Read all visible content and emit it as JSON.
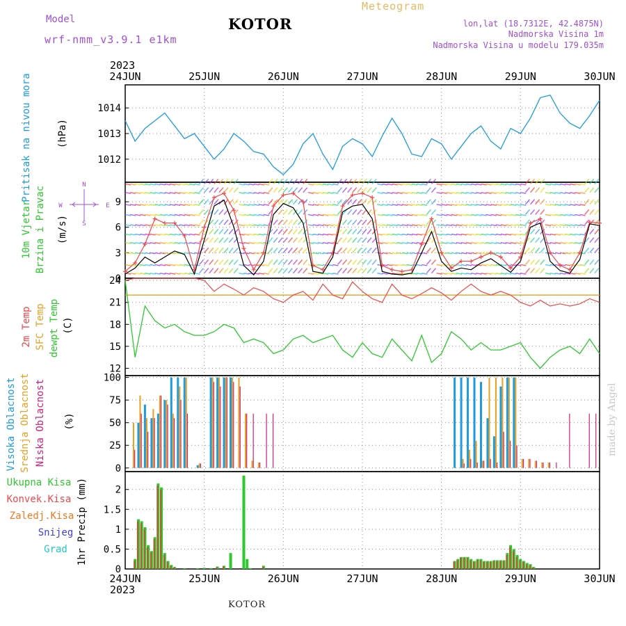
{
  "header": {
    "model_label": "Model",
    "model_name": "wrf-nmm_v3.9.1  e1km",
    "station": "KOTOR",
    "meteogram": "Meteogram",
    "lonlat": "lon,lat (18.7312E, 42.4875N)",
    "altitude": "Nadmorska Visina 1m",
    "model_altitude": "Nadmorska Visina u modelu 179.035m",
    "bottom_station": "KOTOR",
    "watermark": "made by Angel"
  },
  "colors": {
    "pressure": "#1e9be0",
    "temp": "#f04848",
    "sfc_temp": "#e8a020",
    "dewpt": "#2ec82e",
    "wind_speed": "#000000",
    "wind_gust": "#f04848",
    "high_cloud": "#1e9be0",
    "mid_cloud": "#e8a020",
    "low_cloud": "#d0207a",
    "total_precip": "#2ec82e",
    "conv_precip": "#f04848",
    "frz_precip": "#f07820",
    "snow": "#4040e0",
    "graupel": "#20c8c8",
    "purple_label": "#a050d0"
  },
  "chart_data": [
    {
      "type": "line",
      "id": "pressure",
      "ylabel": [
        "Pritisak na nivou mora",
        "(hPa)"
      ],
      "x_year": "2023",
      "x_ticks": [
        "24JUN",
        "25JUN",
        "26JUN",
        "27JUN",
        "28JUN",
        "29JUN",
        "30JUN"
      ],
      "ylim": [
        1011.1,
        1014.9
      ],
      "yticks": [
        1012,
        1013,
        1014
      ],
      "x_hours": [
        0,
        3,
        6,
        9,
        12,
        15,
        18,
        21,
        24,
        27,
        30,
        33,
        36,
        39,
        42,
        45,
        48,
        51,
        54,
        57,
        60,
        63,
        66,
        69,
        72,
        75,
        78,
        81,
        84,
        87,
        90,
        93,
        96,
        99,
        102,
        105,
        108,
        111,
        114,
        117,
        120,
        123,
        126,
        129,
        132,
        135,
        138,
        141,
        144
      ],
      "series": [
        {
          "values": [
            1013.5,
            1012.7,
            1013.2,
            1013.5,
            1013.8,
            1013.3,
            1012.8,
            1013.0,
            1012.5,
            1012.0,
            1012.4,
            1013.0,
            1012.7,
            1012.3,
            1012.2,
            1011.7,
            1011.4,
            1011.8,
            1012.6,
            1013.0,
            1012.2,
            1011.6,
            1012.5,
            1012.8,
            1012.6,
            1012.1,
            1012.9,
            1013.6,
            1013.0,
            1012.2,
            1012.1,
            1012.8,
            1012.6,
            1012.0,
            1012.5,
            1013.0,
            1013.3,
            1012.7,
            1012.4,
            1013.2,
            1013.0,
            1013.6,
            1014.4,
            1014.5,
            1013.8,
            1013.4,
            1013.2,
            1013.7,
            1014.3
          ]
        }
      ],
      "grid": true
    },
    {
      "type": "line",
      "id": "wind",
      "ylabel": [
        "10m Vjetar",
        "Brzina i Pravac",
        "(m/s)"
      ],
      "compass_labels": [
        "N",
        "W",
        "E",
        "S"
      ],
      "ylim": [
        0,
        11.3
      ],
      "yticks": [
        0,
        3,
        6,
        9
      ],
      "x_hours": [
        0,
        3,
        6,
        9,
        12,
        15,
        18,
        21,
        24,
        27,
        30,
        33,
        36,
        39,
        42,
        45,
        48,
        51,
        54,
        57,
        60,
        63,
        66,
        69,
        72,
        75,
        78,
        81,
        84,
        87,
        90,
        93,
        96,
        99,
        102,
        105,
        108,
        111,
        114,
        117,
        120,
        123,
        126,
        129,
        132,
        135,
        138,
        141,
        144
      ],
      "series": [
        {
          "values": [
            0.5,
            1.2,
            2.5,
            1.8,
            2.5,
            3.2,
            2.8,
            0.5,
            4.5,
            8.5,
            9.2,
            6.0,
            1.5,
            0.4,
            2.0,
            7.5,
            8.8,
            8.3,
            6.5,
            0.8,
            0.6,
            2.5,
            7.8,
            8.5,
            8.7,
            7.0,
            0.8,
            0.5,
            0.4,
            0.6,
            3.0,
            5.5,
            2.0,
            0.8,
            1.2,
            1.0,
            1.8,
            2.3,
            1.5,
            0.7,
            2.0,
            6.0,
            6.5,
            2.0,
            0.9,
            0.6,
            2.2,
            6.4,
            6.2
          ]
        },
        {
          "values": [
            0.8,
            1.8,
            4.0,
            7.0,
            6.5,
            6.5,
            5.0,
            1.0,
            6.0,
            9.5,
            10.0,
            8.0,
            3.5,
            1.0,
            3.0,
            8.5,
            9.8,
            10.0,
            9.0,
            1.5,
            1.0,
            3.0,
            8.5,
            9.8,
            10.0,
            9.5,
            1.5,
            1.0,
            0.8,
            1.0,
            4.0,
            7.0,
            3.0,
            1.2,
            2.0,
            2.0,
            2.5,
            3.0,
            2.5,
            1.2,
            2.5,
            6.5,
            7.0,
            3.0,
            1.5,
            1.0,
            3.0,
            6.6,
            6.5
          ]
        }
      ],
      "grid": true
    },
    {
      "type": "line",
      "id": "temperature",
      "ylabel": [
        "2m Temp",
        "SFC Temp",
        "dewpt Temp",
        "(C)"
      ],
      "ylim": [
        11,
        24.3
      ],
      "yticks": [
        12,
        15,
        18,
        21,
        24
      ],
      "x_hours": [
        0,
        3,
        6,
        9,
        12,
        15,
        18,
        21,
        24,
        27,
        30,
        33,
        36,
        39,
        42,
        45,
        48,
        51,
        54,
        57,
        60,
        63,
        66,
        69,
        72,
        75,
        78,
        81,
        84,
        87,
        90,
        93,
        96,
        99,
        102,
        105,
        108,
        111,
        114,
        117,
        120,
        123,
        126,
        129,
        132,
        135,
        138,
        141,
        144
      ],
      "series": [
        {
          "values": [
            24.0,
            24.3,
            24.3,
            24.3,
            24.3,
            24.3,
            24.3,
            24.3,
            24.0,
            22.5,
            23.5,
            22.8,
            22.0,
            23.0,
            22.5,
            21.5,
            21.0,
            22.0,
            22.5,
            21.3,
            23.5,
            22.0,
            21.5,
            23.8,
            22.5,
            21.5,
            21.0,
            23.5,
            22.0,
            21.5,
            22.2,
            23.0,
            22.3,
            21.3,
            22.5,
            23.5,
            22.5,
            22.0,
            22.5,
            22.0,
            21.0,
            20.5,
            21.3,
            20.5,
            20.8,
            20.5,
            20.8,
            21.5,
            21.0
          ]
        },
        {
          "values": [
            22.0,
            22.0,
            22.0,
            22.0,
            22.0,
            22.0,
            22.0,
            22.0,
            22.0,
            22.0,
            22.0,
            22.0,
            22.0,
            22.0,
            22.0,
            22.0,
            22.0,
            22.0,
            22.0,
            22.0,
            22.0,
            22.0,
            22.0,
            22.0,
            22.0,
            22.0,
            22.0,
            22.0,
            22.0,
            22.0,
            22.0,
            22.0,
            22.0,
            22.0,
            22.0,
            22.0,
            22.0,
            22.0,
            22.0,
            22.0,
            22.0,
            22.0,
            22.0,
            22.0,
            22.0,
            22.0,
            22.0,
            22.0,
            22.0
          ]
        },
        {
          "values": [
            24.0,
            13.5,
            20.5,
            18.5,
            17.5,
            18.0,
            17.0,
            16.5,
            16.5,
            17.0,
            18.0,
            17.5,
            15.5,
            16.0,
            15.5,
            14.0,
            14.5,
            16.0,
            16.5,
            15.5,
            16.0,
            16.5,
            14.5,
            13.5,
            15.5,
            14.0,
            13.5,
            16.0,
            14.5,
            13.0,
            16.5,
            12.8,
            14.0,
            17.0,
            16.0,
            14.5,
            15.5,
            14.5,
            14.5,
            15.0,
            15.5,
            13.5,
            12.0,
            13.5,
            14.5,
            15.0,
            14.0,
            16.0,
            14.0
          ]
        }
      ],
      "grid": true
    },
    {
      "type": "bar",
      "id": "clouds",
      "ylabel": [
        "Visoka Oblacnost",
        "Srednja Oblacnost",
        "Niska Oblacnost",
        "(%)"
      ],
      "ylim": [
        -4,
        102
      ],
      "yticks": [
        0,
        25,
        50,
        75,
        100
      ],
      "x_hours": [
        2,
        4,
        6,
        8,
        10,
        12,
        14,
        16,
        18,
        22,
        26,
        28,
        30,
        32,
        34,
        36,
        38,
        40,
        42,
        44,
        46,
        50,
        56,
        62,
        68,
        74,
        80,
        86,
        92,
        98,
        100,
        102,
        104,
        106,
        108,
        110,
        112,
        114,
        116,
        118,
        120,
        122,
        124,
        126,
        128,
        130,
        134,
        140,
        142
      ],
      "series": [
        {
          "name": "Visoka Oblacnost",
          "values": [
            0,
            50,
            70,
            55,
            60,
            75,
            100,
            100,
            100,
            3,
            100,
            100,
            100,
            100,
            0,
            0,
            0,
            0,
            0,
            0,
            0,
            0,
            0,
            0,
            0,
            0,
            0,
            0,
            0,
            0,
            100,
            100,
            100,
            100,
            95,
            55,
            35,
            90,
            100,
            100,
            0,
            0,
            0,
            0,
            0,
            0,
            0,
            0,
            0
          ]
        },
        {
          "name": "Srednja Oblacnost",
          "values": [
            50,
            80,
            55,
            65,
            80,
            75,
            60,
            90,
            100,
            5,
            100,
            100,
            100,
            100,
            100,
            60,
            8,
            6,
            0,
            0,
            0,
            0,
            0,
            0,
            0,
            0,
            0,
            0,
            0,
            0,
            0,
            10,
            20,
            30,
            8,
            100,
            100,
            100,
            100,
            100,
            10,
            10,
            8,
            6,
            6,
            0,
            0,
            0,
            0
          ]
        },
        {
          "name": "Niska Oblacnost",
          "values": [
            20,
            60,
            40,
            55,
            80,
            70,
            55,
            75,
            60,
            5,
            95,
            90,
            100,
            95,
            90,
            60,
            60,
            6,
            60,
            60,
            0,
            0,
            0,
            0,
            0,
            0,
            0,
            0,
            0,
            0,
            0,
            5,
            10,
            6,
            8,
            10,
            6,
            40,
            30,
            25,
            10,
            10,
            8,
            6,
            6,
            6,
            60,
            60,
            60
          ]
        }
      ],
      "grid": true
    },
    {
      "type": "bar",
      "id": "precip",
      "ylabel": [
        "1hr Precip (mm)"
      ],
      "legend": [
        "Ukupna Kisa",
        "Konvek.Kisa",
        "Zaledj.Kisa",
        "Snijeg",
        "Grad"
      ],
      "ylim": [
        0,
        2.45
      ],
      "yticks": [
        0,
        0.5,
        1,
        1.5,
        2
      ],
      "x_hours": [
        3,
        4,
        5,
        6,
        7,
        8,
        9,
        10,
        11,
        12,
        13,
        14,
        15,
        18,
        22,
        24,
        26,
        28,
        30,
        32,
        36,
        37,
        38,
        42,
        100,
        101,
        102,
        103,
        104,
        105,
        106,
        107,
        108,
        109,
        110,
        111,
        112,
        113,
        114,
        115,
        116,
        117,
        118,
        119,
        120,
        121,
        122,
        123,
        124
      ],
      "series": [
        {
          "name": "Ukupna Kisa",
          "values": [
            0.25,
            1.25,
            1.2,
            1.05,
            0.6,
            0.45,
            0.8,
            2.15,
            2.05,
            0.4,
            0.2,
            0.1,
            0.05,
            0.02,
            0.02,
            0.03,
            0.02,
            0.06,
            0.08,
            0.4,
            2.35,
            0.25,
            0.02,
            0.08,
            0.2,
            0.25,
            0.3,
            0.3,
            0.3,
            0.25,
            0.2,
            0.25,
            0.25,
            0.2,
            0.2,
            0.2,
            0.22,
            0.22,
            0.22,
            0.22,
            0.4,
            0.6,
            0.5,
            0.35,
            0.25,
            0.2,
            0.15,
            0.12,
            0.05
          ]
        },
        {
          "name": "Konvek.Kisa",
          "values": [
            0.2,
            1.2,
            1.15,
            1.0,
            0.55,
            0.42,
            0.75,
            2.1,
            2.0,
            0.35,
            0.18,
            0.08,
            0.04,
            0,
            0,
            0,
            0,
            0.05,
            0.07,
            0,
            0,
            0,
            0,
            0.06,
            0.18,
            0.22,
            0.28,
            0.28,
            0.28,
            0.22,
            0.18,
            0.22,
            0.22,
            0.18,
            0.18,
            0.18,
            0.2,
            0.2,
            0.2,
            0.2,
            0.35,
            0.55,
            0.45,
            0.3,
            0.22,
            0.18,
            0.12,
            0.1,
            0.04
          ]
        }
      ],
      "grid": true
    }
  ]
}
